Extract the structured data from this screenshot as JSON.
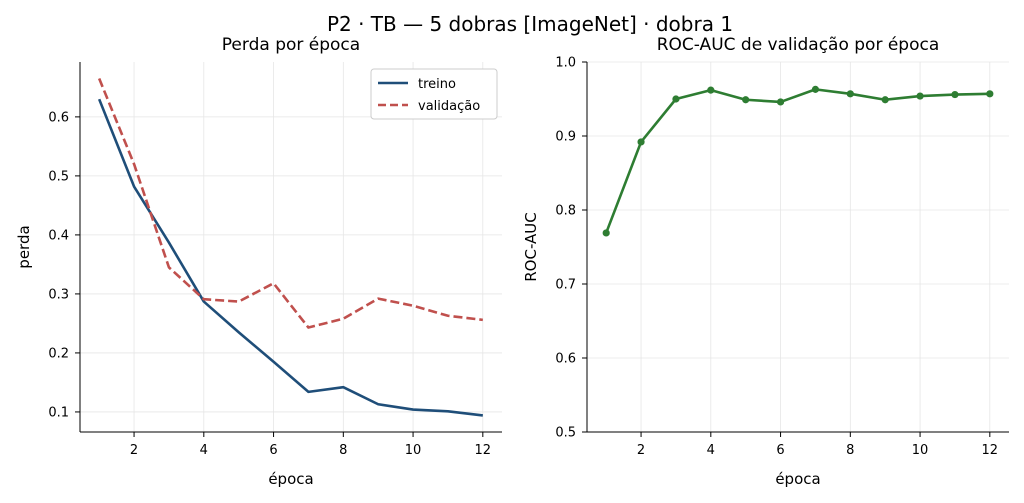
{
  "figure": {
    "title": "P2 · TB — 5 dobras [ImageNet] · dobra 1"
  },
  "chart_data": [
    {
      "type": "line",
      "title": "Perda por época",
      "xlabel": "época",
      "ylabel": "perda",
      "x": [
        1,
        2,
        3,
        4,
        5,
        6,
        7,
        8,
        9,
        10,
        11,
        12
      ],
      "xlim": [
        0.45,
        12.55
      ],
      "ylim": [
        0.066,
        0.693
      ],
      "xticks": [
        2,
        4,
        6,
        8,
        10,
        12
      ],
      "yticks": [
        0.1,
        0.2,
        0.3,
        0.4,
        0.5,
        0.6
      ],
      "ytick_labels": [
        "0.1",
        "0.2",
        "0.3",
        "0.4",
        "0.5",
        "0.6"
      ],
      "grid": true,
      "legend": "top-right",
      "series": [
        {
          "name": "treino",
          "color": "#1f4e79",
          "style": "solid",
          "values": [
            0.63,
            0.482,
            0.387,
            0.287,
            0.235,
            0.185,
            0.134,
            0.142,
            0.113,
            0.104,
            0.101,
            0.094
          ]
        },
        {
          "name": "validação",
          "color": "#c0504d",
          "style": "dashed",
          "values": [
            0.665,
            0.52,
            0.345,
            0.291,
            0.287,
            0.318,
            0.243,
            0.258,
            0.292,
            0.28,
            0.263,
            0.256
          ]
        }
      ]
    },
    {
      "type": "line",
      "title": "ROC-AUC de validação por época",
      "xlabel": "época",
      "ylabel": "ROC-AUC",
      "x": [
        1,
        2,
        3,
        4,
        5,
        6,
        7,
        8,
        9,
        10,
        11,
        12
      ],
      "xlim": [
        0.45,
        12.55
      ],
      "ylim": [
        0.5,
        1.0
      ],
      "xticks": [
        2,
        4,
        6,
        8,
        10,
        12
      ],
      "yticks": [
        0.5,
        0.6,
        0.7,
        0.8,
        0.9,
        1.0
      ],
      "ytick_labels": [
        "0.5",
        "0.6",
        "0.7",
        "0.8",
        "0.9",
        "1.0"
      ],
      "grid": true,
      "series": [
        {
          "color": "#2e7d32",
          "style": "solid-markers",
          "values": [
            0.769,
            0.892,
            0.95,
            0.962,
            0.949,
            0.946,
            0.963,
            0.957,
            0.949,
            0.954,
            0.956,
            0.957
          ]
        }
      ]
    }
  ]
}
